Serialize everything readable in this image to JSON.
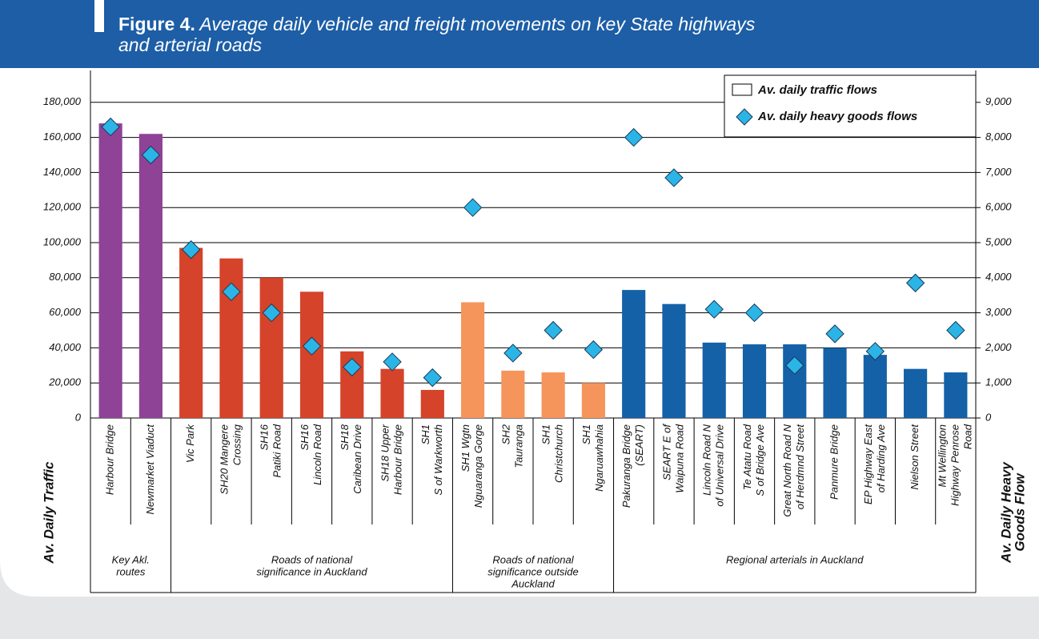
{
  "chart_data": {
    "type": "bar",
    "figure_label": "Figure 4.",
    "title": [
      "Average daily vehicle and freight movements on key State highways",
      "and arterial roads"
    ],
    "y_label": "Av. Daily Traffic",
    "y2_label": [
      "Av. Daily Heavy",
      "Goods Flow"
    ],
    "ylim": [
      0,
      200000
    ],
    "yticks": [
      0,
      {
        "value": 20000,
        "label": "20,000"
      },
      {
        "value": 40000,
        "label": "40,000"
      },
      {
        "value": 60000,
        "label": "60,000"
      },
      {
        "value": 80000,
        "label": "80,000"
      },
      {
        "value": 100000,
        "label": "100,000"
      },
      {
        "value": 120000,
        "label": "120,000"
      },
      {
        "value": 140000,
        "label": "140,000"
      },
      {
        "value": 160000,
        "label": "160,000"
      },
      {
        "value": 180000,
        "label": "180,000"
      }
    ],
    "y2lim": [
      0,
      10000
    ],
    "y2ticks": [
      0,
      {
        "value": 1000,
        "label": "1,000"
      },
      {
        "value": 2000,
        "label": "2,000"
      },
      {
        "value": 3000,
        "label": "3,000"
      },
      {
        "value": 4000,
        "label": "4,000"
      },
      {
        "value": 5000,
        "label": "5,000"
      },
      {
        "value": 6000,
        "label": "6,000"
      },
      {
        "value": 7000,
        "label": "7,000"
      },
      {
        "value": 8000,
        "label": "8,000"
      },
      {
        "value": 9000,
        "label": "9,000"
      }
    ],
    "grid": true,
    "legend": "top-right",
    "groups": [
      {
        "label": [
          "Key Akl.",
          "routes"
        ],
        "color": "#8e4397",
        "categories": [
          [
            "Harbour Bridge"
          ],
          [
            "Newmarket Viaduct"
          ]
        ]
      },
      {
        "label": [
          "Roads of national",
          "significance in Auckland"
        ],
        "color": "#d5432a",
        "categories": [
          [
            "Vic Park"
          ],
          [
            "SH20 Mangere",
            "Crossing"
          ],
          [
            "SH16",
            "Patiki Road"
          ],
          [
            "SH16",
            "Lincoln Road"
          ],
          [
            "SH18",
            "Caribean Drive"
          ],
          [
            "SH18 Upper",
            "Harbour Bridge"
          ],
          [
            "SH1",
            "S of Warkworth"
          ]
        ]
      },
      {
        "label": [
          "Roads of national",
          "significance outside",
          "Auckland"
        ],
        "color": "#f5955c",
        "categories": [
          [
            "SH1 Wgtn",
            "Nguaranga Gorge"
          ],
          [
            "SH2",
            "Tauranga"
          ],
          [
            "SH1",
            "Christchurch"
          ],
          [
            "SH1",
            "Ngaruawhahia"
          ]
        ]
      },
      {
        "label": [
          "Regional arterials in Auckland"
        ],
        "color": "#1461a8",
        "categories": [
          [
            "Pakuranga Bridge",
            "(SEART)"
          ],
          [
            "SEART E of",
            "Waipuna Road"
          ],
          [
            "Lincoln Road N",
            "of Universal Drive"
          ],
          [
            "Te Atatu Road",
            "S of Bridge Ave"
          ],
          [
            "Great North Road N",
            "of Herdmnd Street"
          ],
          [
            "Panmure Bridge"
          ],
          [
            "EP Highway East",
            "of Harding Ave"
          ],
          [
            "Nielson Street"
          ],
          [
            "Mt Wellington",
            "Highway Penrose",
            "Road"
          ]
        ]
      }
    ],
    "series": [
      {
        "name": "Av. daily traffic flows",
        "values": [
          168000,
          162000,
          97000,
          91000,
          80000,
          72000,
          38000,
          28000,
          16000,
          66000,
          27000,
          26000,
          20000,
          73000,
          65000,
          43000,
          42000,
          42000,
          40000,
          36000,
          28000,
          26000
        ]
      },
      {
        "name": "Av. daily heavy goods flows",
        "type": "scatter",
        "axis": "y2",
        "color": "#2bb5e6",
        "values": [
          8300,
          7500,
          4800,
          3600,
          3000,
          2050,
          1450,
          1600,
          1150,
          6000,
          1850,
          2500,
          1950,
          8000,
          6850,
          3100,
          3000,
          1500,
          2400,
          1900,
          3850,
          2500
        ]
      }
    ]
  }
}
